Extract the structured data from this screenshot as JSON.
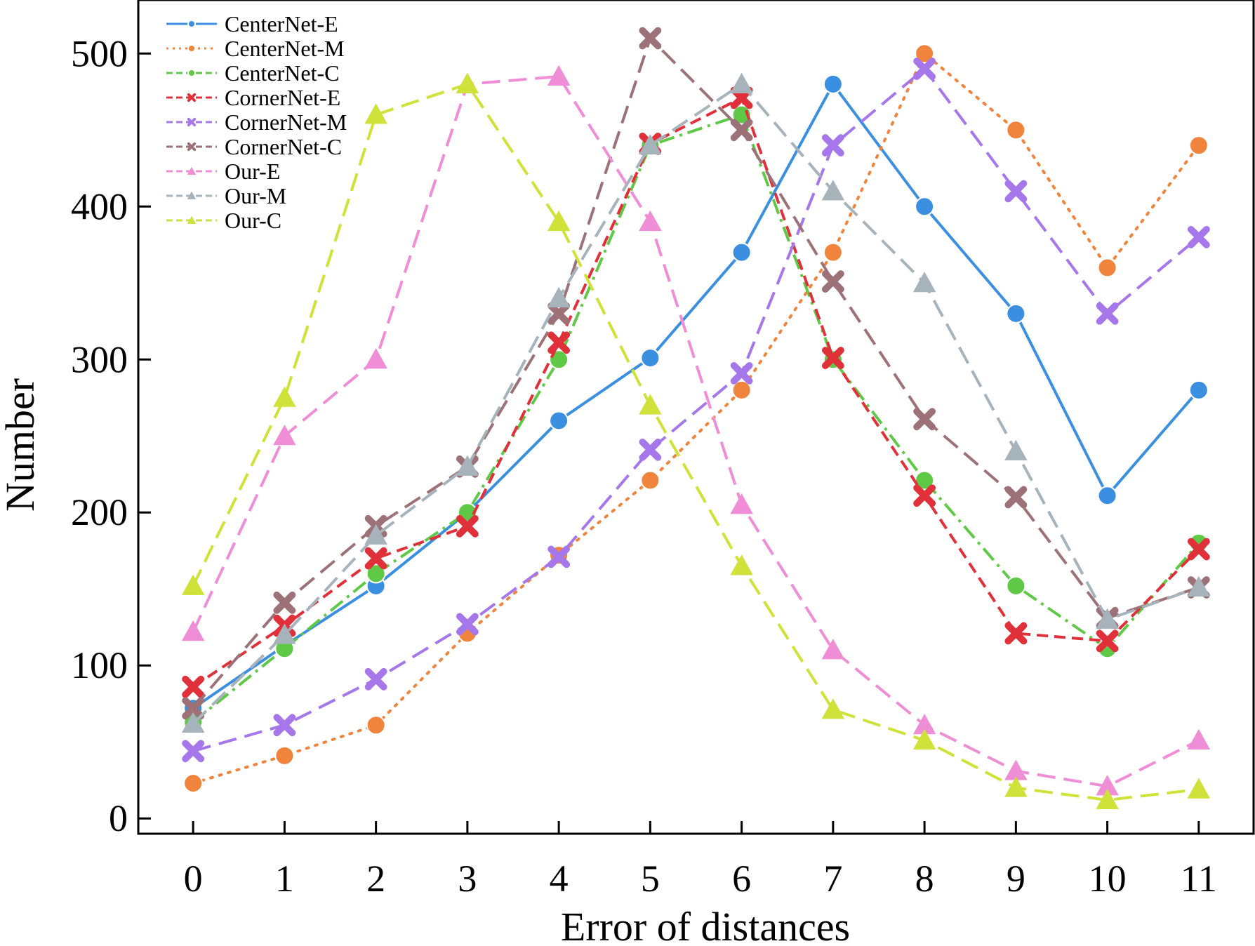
{
  "chart_data": {
    "type": "line",
    "xlabel": "Error of distances",
    "ylabel": "Number",
    "x": [
      0,
      1,
      2,
      3,
      4,
      5,
      6,
      7,
      8,
      9,
      10,
      11
    ],
    "xlim": [
      -0.6,
      11.6
    ],
    "ylim": [
      -10,
      535
    ],
    "yticks": [
      0,
      100,
      200,
      300,
      400,
      500
    ],
    "grid": false,
    "legend_position": "top-left",
    "series": [
      {
        "name": "CenterNet-E",
        "color": "#3b8fe0",
        "dash": "solid",
        "marker": "circle",
        "values": [
          72,
          113,
          152,
          200,
          260,
          301,
          370,
          480,
          400,
          330,
          211,
          280
        ]
      },
      {
        "name": "CenterNet-M",
        "color": "#f0843c",
        "dash": "dotted",
        "marker": "circle",
        "values": [
          23,
          41,
          61,
          121,
          172,
          221,
          280,
          370,
          500,
          450,
          360,
          440
        ]
      },
      {
        "name": "CenterNet-C",
        "color": "#5fc947",
        "dash": "dashdot",
        "marker": "circle",
        "values": [
          63,
          111,
          160,
          200,
          300,
          440,
          460,
          300,
          221,
          152,
          111,
          180
        ]
      },
      {
        "name": "CornerNet-E",
        "color": "#e0303a",
        "dash": "dashed",
        "marker": "x",
        "values": [
          86,
          126,
          170,
          191,
          311,
          441,
          471,
          301,
          211,
          121,
          116,
          176
        ]
      },
      {
        "name": "CornerNet-M",
        "color": "#a677ea",
        "dash": "longdash",
        "marker": "x",
        "values": [
          44,
          61,
          91,
          127,
          171,
          241,
          291,
          440,
          490,
          410,
          330,
          380
        ]
      },
      {
        "name": "CornerNet-C",
        "color": "#9c7278",
        "dash": "longdash",
        "marker": "x",
        "values": [
          72,
          141,
          191,
          230,
          330,
          510,
          450,
          351,
          261,
          210,
          131,
          151
        ]
      },
      {
        "name": "Our-E",
        "color": "#ef8ed6",
        "dash": "longdash",
        "marker": "triangle",
        "values": [
          122,
          250,
          300,
          480,
          485,
          390,
          205,
          110,
          61,
          31,
          21,
          51
        ]
      },
      {
        "name": "Our-M",
        "color": "#a7b3ba",
        "dash": "longdash",
        "marker": "triangle",
        "values": [
          62,
          120,
          185,
          230,
          340,
          440,
          480,
          410,
          350,
          240,
          130,
          151
        ]
      },
      {
        "name": "Our-C",
        "color": "#cfe23a",
        "dash": "longdash",
        "marker": "triangle",
        "values": [
          152,
          275,
          460,
          480,
          390,
          270,
          165,
          71,
          51,
          20,
          12,
          19
        ]
      }
    ]
  }
}
